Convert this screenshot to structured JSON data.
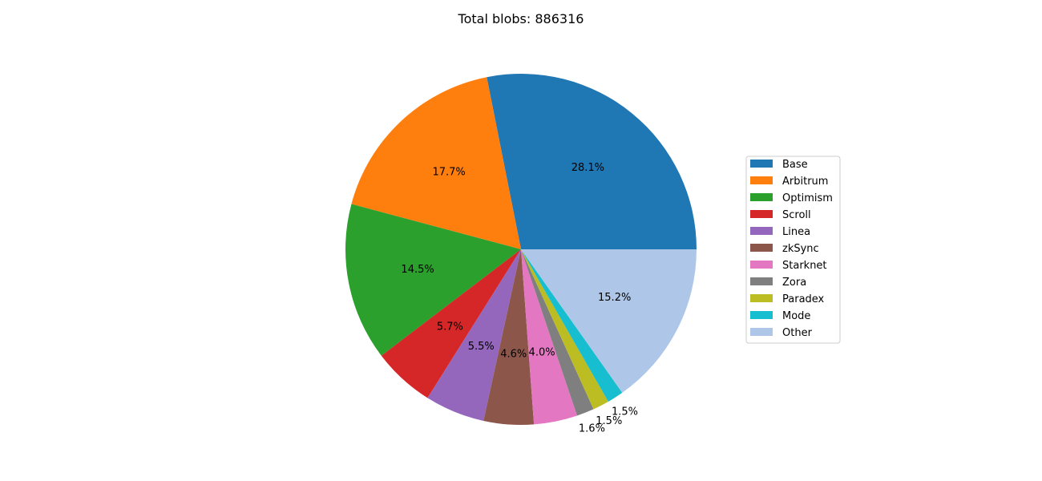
{
  "chart_data": {
    "type": "pie",
    "title": "Total blobs: 886316",
    "start_angle_deg": 0,
    "direction": "counterclockwise",
    "legend_position": "right",
    "slices": [
      {
        "label": "Base",
        "value": 28.1,
        "pct_label": "28.1%",
        "color": "#1f77b4"
      },
      {
        "label": "Arbitrum",
        "value": 17.7,
        "pct_label": "17.7%",
        "color": "#ff7f0e"
      },
      {
        "label": "Optimism",
        "value": 14.5,
        "pct_label": "14.5%",
        "color": "#2ca02c"
      },
      {
        "label": "Scroll",
        "value": 5.7,
        "pct_label": "5.7%",
        "color": "#d62728"
      },
      {
        "label": "Linea",
        "value": 5.5,
        "pct_label": "5.5%",
        "color": "#9467bd"
      },
      {
        "label": "zkSync",
        "value": 4.6,
        "pct_label": "4.6%",
        "color": "#8c564b"
      },
      {
        "label": "Starknet",
        "value": 4.0,
        "pct_label": "4.0%",
        "color": "#e377c2"
      },
      {
        "label": "Zora",
        "value": 1.6,
        "pct_label": "1.6%",
        "color": "#7f7f7f"
      },
      {
        "label": "Paradex",
        "value": 1.5,
        "pct_label": "1.5%",
        "color": "#bcbd22"
      },
      {
        "label": "Mode",
        "value": 1.5,
        "pct_label": "1.5%",
        "color": "#17becf"
      },
      {
        "label": "Other",
        "value": 15.2,
        "pct_label": "15.2%",
        "color": "#aec7e8"
      }
    ]
  }
}
